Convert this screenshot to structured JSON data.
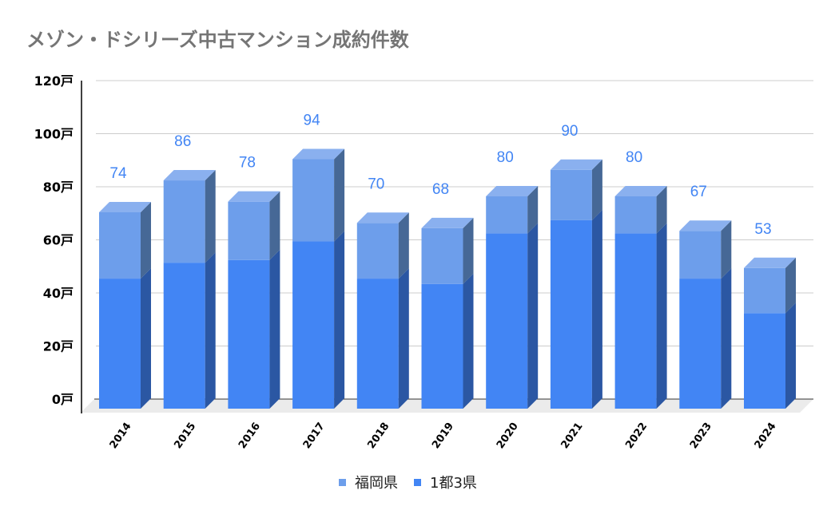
{
  "title": "メゾン・ドシリーズ中古マンション成約件数",
  "colors": {
    "fukuoka_front": "#6d9eeb",
    "fukuoka_top": "#8ab0ef",
    "fukuoka_side": "#466896",
    "tokyo_front": "#4285f4",
    "tokyo_side": "#2b57a3",
    "label": "#4285f4",
    "grid": "#cccccc",
    "floor": "#ebebeb",
    "axis": "#000000"
  },
  "legend": [
    {
      "label": "福岡県",
      "color": "#6d9eeb"
    },
    {
      "label": "1都3県",
      "color": "#4285f4"
    }
  ],
  "chart_data": {
    "type": "bar",
    "stacked": true,
    "three_d": true,
    "title": "メゾン・ドシリーズ中古マンション成約件数",
    "xlabel": "",
    "ylabel": "",
    "categories": [
      "2014",
      "2015",
      "2016",
      "2017",
      "2018",
      "2019",
      "2020",
      "2021",
      "2022",
      "2023",
      "2024"
    ],
    "series": [
      {
        "name": "1都3県",
        "values": [
          49,
          55,
          56,
          63,
          49,
          47,
          66,
          71,
          66,
          49,
          36
        ]
      },
      {
        "name": "福岡県",
        "values": [
          25,
          31,
          22,
          31,
          21,
          21,
          14,
          19,
          14,
          18,
          17
        ]
      }
    ],
    "totals": [
      74,
      86,
      78,
      94,
      70,
      68,
      80,
      90,
      80,
      67,
      53
    ],
    "y_ticks": [
      "0戸",
      "20戸",
      "40戸",
      "60戸",
      "80戸",
      "100戸",
      "120戸"
    ],
    "ylim": [
      0,
      120
    ],
    "grid": true,
    "legend_position": "bottom"
  }
}
